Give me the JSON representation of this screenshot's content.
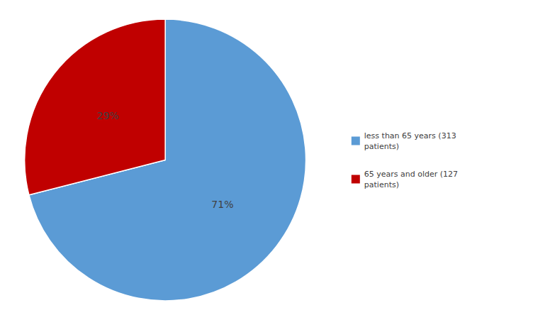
{
  "chart_data": {
    "type": "pie",
    "categories": [
      "less than 65 years (313\npatients)",
      "65 years and older (127\npatients)"
    ],
    "values": [
      71,
      29
    ],
    "value_labels": [
      "71%",
      "29%"
    ],
    "colors": [
      "#5B9BD5",
      "#C00000"
    ],
    "data_labels": true,
    "legend": "right"
  }
}
